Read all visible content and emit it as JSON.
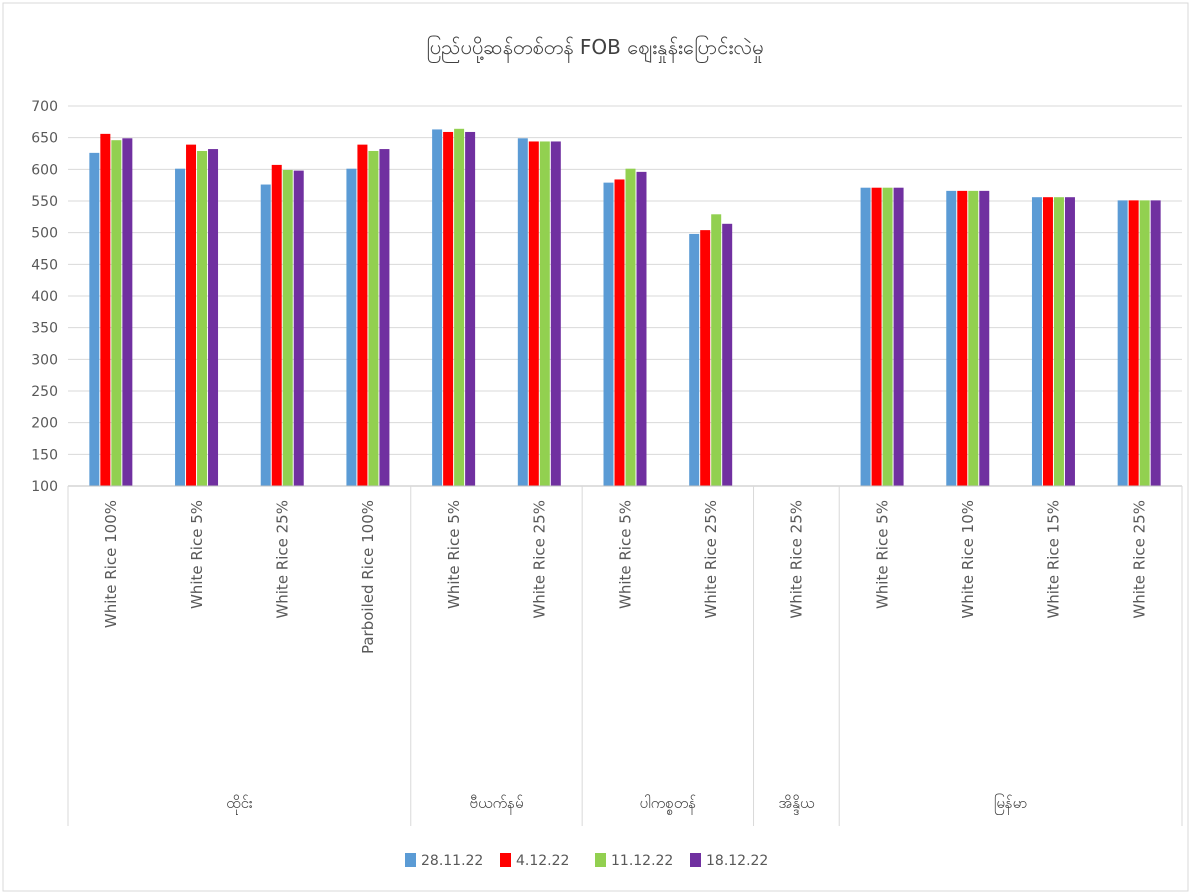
{
  "chart_data": {
    "type": "bar",
    "title": "ပြည်ပပို့ဆန်တစ်တန် FOB ဈေးနှုန်းပြောင်းလဲမှု",
    "xlabel": "",
    "ylabel": "",
    "ylim": [
      100,
      700
    ],
    "yticks": [
      100,
      150,
      200,
      250,
      300,
      350,
      400,
      450,
      500,
      550,
      600,
      650,
      700
    ],
    "grid": true,
    "legend_position": "bottom",
    "categories": [
      "White Rice 100%",
      "White Rice 5%",
      "White Rice 25%",
      "Parboiled Rice 100%",
      "White Rice 5%",
      "White Rice 25%",
      "White Rice 5%",
      "White Rice 25%",
      "White Rice 25%",
      "White Rice 5%",
      "White Rice 10%",
      "White Rice 15%",
      "White Rice 25%"
    ],
    "groups": [
      {
        "label": "ထိုင်း",
        "count": 4
      },
      {
        "label": "ဗီယက်နမ်",
        "count": 2
      },
      {
        "label": "ပါကစ္စတန်",
        "count": 2
      },
      {
        "label": "အိန္ဒိယ",
        "count": 1
      },
      {
        "label": "မြန်မာ",
        "count": 4
      }
    ],
    "series": [
      {
        "name": "28.11.22",
        "color": "#5b9bd5",
        "values": [
          626,
          601,
          576,
          601,
          663,
          649,
          579,
          498,
          null,
          571,
          566,
          556,
          551
        ]
      },
      {
        "name": "4.12.22",
        "color": "#ff0000",
        "values": [
          656,
          639,
          607,
          639,
          659,
          644,
          584,
          504,
          null,
          571,
          566,
          556,
          551
        ]
      },
      {
        "name": "11.12.22",
        "color": "#92d050",
        "values": [
          646,
          629,
          599,
          629,
          664,
          644,
          601,
          529,
          null,
          571,
          566,
          556,
          551
        ]
      },
      {
        "name": "18.12.22",
        "color": "#7030a0",
        "values": [
          649,
          632,
          598,
          632,
          659,
          644,
          596,
          514,
          null,
          571,
          566,
          556,
          551
        ]
      }
    ]
  }
}
